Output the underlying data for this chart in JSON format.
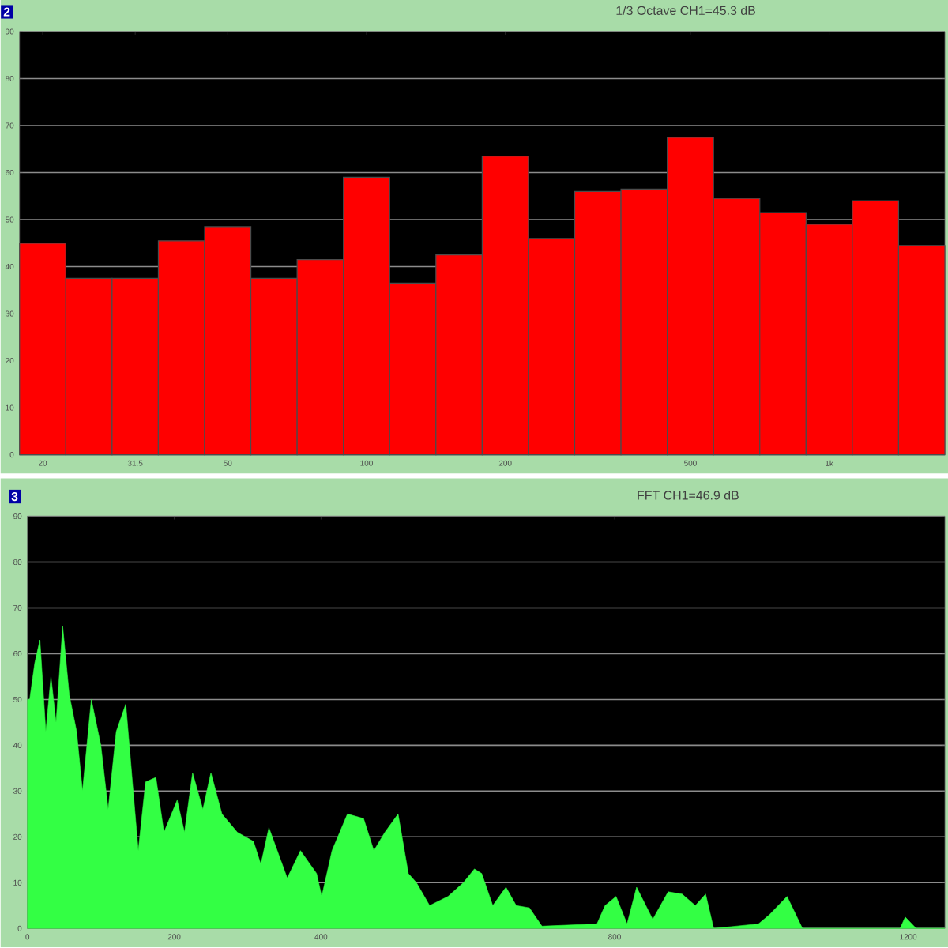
{
  "chart_data": [
    {
      "type": "bar",
      "title": "1/3 Octave CH1=45.3 dB",
      "annotations": [
        "2"
      ],
      "categories": [
        "20",
        null,
        "31.5",
        null,
        "50",
        null,
        null,
        "100",
        null,
        null,
        "200",
        null,
        null,
        null,
        "500",
        null,
        null,
        "1k",
        null,
        null
      ],
      "values": [
        45,
        37.5,
        37.5,
        45.5,
        48.5,
        37.5,
        41.5,
        59,
        36.5,
        42.5,
        63.5,
        46,
        56,
        56.5,
        67.5,
        54.5,
        51.5,
        49,
        54,
        44.5
      ],
      "color": "#ff0000",
      "ylim": [
        0,
        90
      ],
      "yticks": [
        0,
        10,
        20,
        30,
        40,
        50,
        60,
        70,
        80,
        90
      ],
      "grid": "y"
    },
    {
      "type": "area",
      "title": "FFT CH1=46.9 dB",
      "annotations": [
        "3"
      ],
      "x": [
        0,
        3,
        10,
        17,
        25,
        32,
        39,
        48,
        57,
        67,
        75,
        87,
        100,
        110,
        121,
        134,
        143,
        151,
        161,
        175,
        186,
        204,
        214,
        225,
        239,
        250,
        265,
        286,
        308,
        318,
        329,
        354,
        372,
        394,
        401,
        415,
        436,
        458,
        472,
        487,
        505,
        519,
        530,
        548,
        573,
        594,
        609,
        619,
        634,
        652,
        666,
        684,
        701,
        776,
        787,
        802,
        817,
        830,
        852,
        873,
        892,
        910,
        924,
        935,
        996,
        1011,
        1035,
        1056,
        1110,
        1189,
        1196,
        1211,
        1250
      ],
      "values": [
        50,
        50,
        58,
        63,
        43,
        55,
        45,
        66,
        51,
        43,
        30,
        50,
        40,
        26,
        43,
        49,
        32,
        17,
        32,
        33,
        21,
        28,
        21,
        34,
        26,
        34,
        25,
        21,
        19,
        14,
        22,
        11,
        17,
        12,
        7,
        17,
        25,
        24,
        17,
        21,
        25,
        12,
        10,
        5,
        7,
        10,
        13,
        12,
        5,
        9,
        5,
        4.5,
        0.5,
        1,
        5,
        7,
        1,
        9,
        2,
        8,
        7.5,
        5,
        7.5,
        0,
        1,
        3,
        7,
        0,
        0,
        0,
        2.5,
        0,
        0
      ],
      "color": "#33ff44",
      "xlim": [
        0,
        1250
      ],
      "xticks": [
        0,
        200,
        400,
        800,
        1200
      ],
      "ylim": [
        0,
        90
      ],
      "yticks": [
        0,
        10,
        20,
        30,
        40,
        50,
        60,
        70,
        80,
        90
      ],
      "grid": "y"
    }
  ]
}
